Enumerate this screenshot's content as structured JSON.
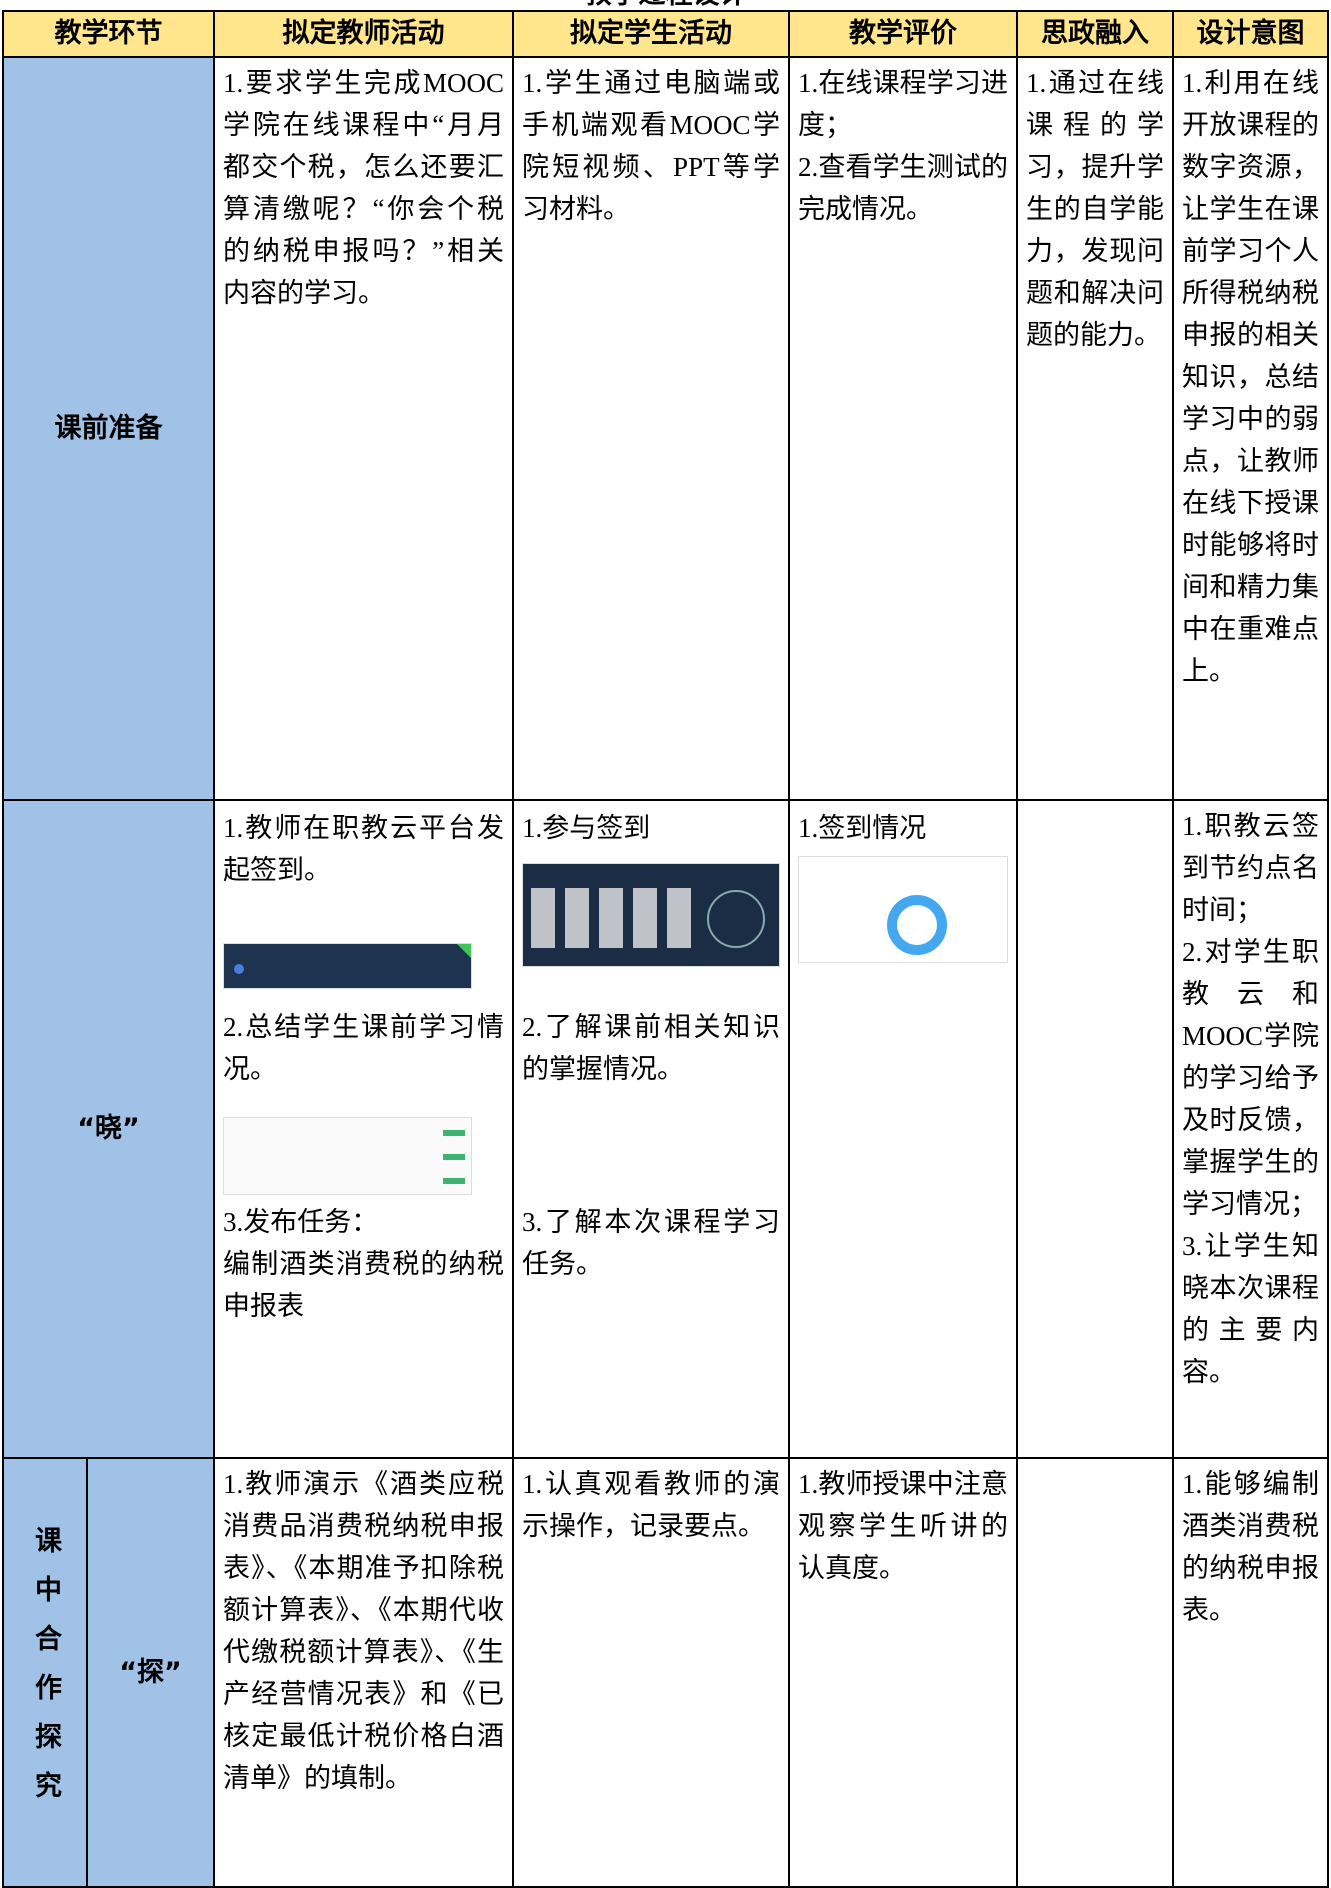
{
  "title": "教学过程设计",
  "table": {
    "header": [
      "教学环节",
      "拟定教师活动",
      "拟定学生活动",
      "教学评价",
      "思政融入",
      "设计意图"
    ],
    "rows": [
      {
        "stage": "课前准备",
        "cells": [
          [
            "1.要求学生完成MOOC学院在线课程中“月月都交个税，怎么还要汇算清缴呢？“你会个税的纳税申报吗？”相关内容的学习。"
          ],
          [
            "1.学生通过电脑端或手机端观看MOOC学院短视频、PPT等学习材料。"
          ],
          [
            "1.在线课程学习进度；",
            "2.查看学生测试的完成情况。"
          ],
          [
            "1.通过在线课程的学习，提升学生的自学能力，发现问题和解决问题的能力。"
          ],
          [
            "1.利用在线开放课程的数字资源，让学生在课前学习个人所得税纳税申报的相关知识，总结学习中的弱点，让教师在线下授课时能够将时间和精力集中在重难点上。"
          ]
        ]
      },
      {
        "stage": "“晓”",
        "cells": [
          [
            "1.教师在职教云平台发起签到。",
            "2.总结学生课前学习情况。",
            "3.发布任务：",
            "编制酒类消费税的纳税申报表"
          ],
          [
            "1.参与签到",
            "2.了解课前相关知识的掌握情况。",
            "3.了解本次课程学习任务。"
          ],
          [
            "1.签到情况"
          ],
          [],
          [
            "1.职教云签到节约点名时间；",
            "2.对学生职教云和MOOC学院的学习给予及时反馈，掌握学生的学习情况；",
            "3.让学生知晓本次课程的主要内容。"
          ]
        ]
      },
      {
        "stage": "课中合作探究",
        "substage": "“探”",
        "cells": [
          [
            "1.教师演示《酒类应税消费品消费税纳税申报表》、《本期准予扣除税额计算表》、《本期代收代缴税额计算表》、《生产经营情况表》和《已核定最低计税价格白酒清单》的填制。"
          ],
          [
            "1.认真观看教师的演示操作，记录要点。"
          ],
          [
            "1.教师授课中注意观察学生听讲的认真度。"
          ],
          [],
          [
            "1.能够编制酒类消费税的纳税申报表。"
          ]
        ]
      }
    ]
  }
}
